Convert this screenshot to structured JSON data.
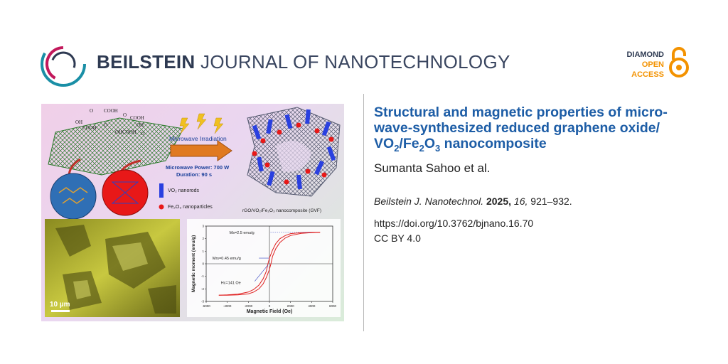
{
  "journal": {
    "name_bold": "BEILSTEIN",
    "name_rest": "JOURNAL OF NANOTECHNOLOGY"
  },
  "badge": {
    "line1": "DIAMOND",
    "line2": "OPEN",
    "line3": "ACCESS"
  },
  "article": {
    "title_line1": "Structural and magnetic properties of micro-",
    "title_line2": "wave-synthesized reduced graphene oxide/",
    "title_vo": "VO",
    "title_sub1": "2",
    "title_fe": "/Fe",
    "title_sub2": "2",
    "title_o": "O",
    "title_sub3": "3",
    "title_end": " nanocomposite",
    "authors": "Sumanta Sahoo et al.",
    "citation_journal": "Beilstein J. Nanotechnol.",
    "citation_year": "2025,",
    "citation_volume": "16,",
    "citation_pages": "921–932.",
    "doi": "https://doi.org/10.3762/bjnano.16.70",
    "license": "CC BY 4.0"
  },
  "graphic": {
    "microwave_label": "Microwave Irradiation",
    "power_label": "Microwave Power: 700 W",
    "duration_label": "Duration: 90 s",
    "legend_vo2": "VO₂ nanorods",
    "legend_fe2o3": "Fe₂O₃ nanoparticles",
    "composite_label": "rGO/VO₂/Fe₂O₃ nanocomposite (GVF)",
    "scale_bar": "10 µm",
    "go_labels": [
      "O",
      "COOH",
      "O",
      "COOH",
      "OH",
      "COOH",
      "O",
      "OH",
      "COOH",
      "OH",
      "O"
    ]
  },
  "chart_data": {
    "type": "line",
    "title": "",
    "xlabel": "Magnetic Field (Oe)",
    "ylabel": "Magnetic moment (emu/g)",
    "xlim": [
      -6000,
      6000
    ],
    "ylim": [
      -3,
      3
    ],
    "xticks": [
      -6000,
      -4000,
      -2000,
      0,
      2000,
      4000,
      6000
    ],
    "yticks": [
      3,
      2,
      1,
      0,
      -1,
      -2,
      -3
    ],
    "grid": false,
    "series": [
      {
        "name": "",
        "x": [
          -4800,
          -4000,
          -3000,
          -2000,
          -1500,
          -1000,
          -600,
          -300,
          -141,
          0,
          300,
          600,
          1000,
          1500,
          2000,
          3000,
          4000,
          4800
        ],
        "y": [
          -2.5,
          -2.48,
          -2.42,
          -2.25,
          -2.05,
          -1.7,
          -1.2,
          -0.6,
          0,
          0.45,
          1.1,
          1.6,
          2.0,
          2.25,
          2.4,
          2.48,
          2.5,
          2.5
        ]
      },
      {
        "name": "",
        "x": [
          -4800,
          -4000,
          -3000,
          -2000,
          -1500,
          -1000,
          -600,
          -300,
          0,
          141,
          300,
          600,
          1000,
          1500,
          2000,
          3000,
          4000,
          4800
        ],
        "y": [
          -2.5,
          -2.5,
          -2.48,
          -2.4,
          -2.25,
          -2.0,
          -1.6,
          -1.1,
          -0.45,
          0,
          0.6,
          1.2,
          1.7,
          2.05,
          2.25,
          2.42,
          2.48,
          2.5
        ]
      }
    ],
    "annotations": [
      "Ms=2.5 emu/g",
      "Mrs=0.45 emu/g",
      "Hc=141 Oe"
    ],
    "line_color": "#e02020"
  },
  "colors": {
    "title_blue": "#1d5da6",
    "accent_orange": "#f39200",
    "logo_teal": "#1a8fa6",
    "logo_magenta": "#c2185b"
  }
}
